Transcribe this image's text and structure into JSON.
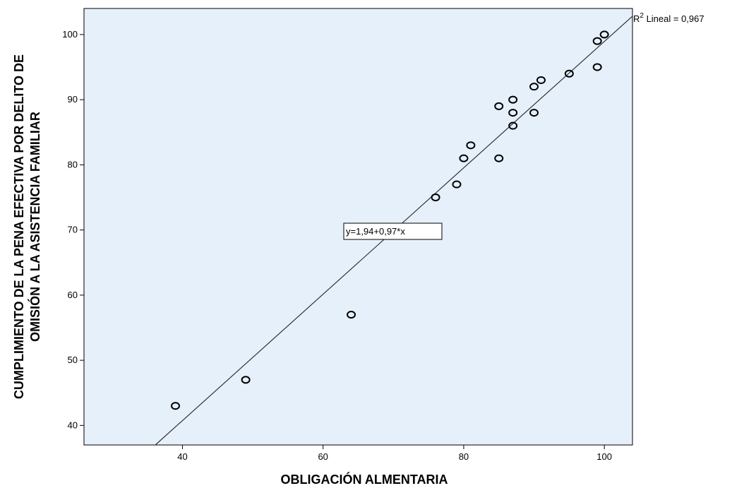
{
  "chart_data": {
    "type": "scatter",
    "title": "",
    "xlabel": "OBLIGACIÓN ALMENTARIA",
    "ylabel_lines": [
      "CUMPLIMIENTO DE LA PENA EFECTIVA POR DELITO DE",
      "OMISIÓN A LA ASISTENCIA FAMILIAR"
    ],
    "xlim": [
      26,
      104
    ],
    "ylim": [
      37,
      104
    ],
    "xticks": [
      40,
      60,
      80,
      100
    ],
    "yticks": [
      40,
      50,
      60,
      70,
      80,
      90,
      100
    ],
    "grid": false,
    "background_color": "#e6f0fb",
    "marker_color": "#000000",
    "points": [
      {
        "x": 39,
        "y": 43
      },
      {
        "x": 49,
        "y": 47
      },
      {
        "x": 64,
        "y": 57
      },
      {
        "x": 76,
        "y": 75
      },
      {
        "x": 79,
        "y": 77
      },
      {
        "x": 80,
        "y": 81
      },
      {
        "x": 81,
        "y": 83
      },
      {
        "x": 85,
        "y": 81
      },
      {
        "x": 85,
        "y": 89
      },
      {
        "x": 87,
        "y": 86
      },
      {
        "x": 87,
        "y": 88
      },
      {
        "x": 87,
        "y": 90
      },
      {
        "x": 90,
        "y": 88
      },
      {
        "x": 90,
        "y": 92
      },
      {
        "x": 91,
        "y": 93
      },
      {
        "x": 95,
        "y": 94
      },
      {
        "x": 99,
        "y": 95
      },
      {
        "x": 99,
        "y": 99
      },
      {
        "x": 100,
        "y": 100
      }
    ],
    "fit_line": {
      "type": "linear",
      "intercept": 1.94,
      "slope": 0.97,
      "equation_label": "y=1,94+0,97*x",
      "r2_prefix": "R",
      "r2_superscript": "2",
      "r2_suffix": " Lineal = 0,967"
    }
  }
}
